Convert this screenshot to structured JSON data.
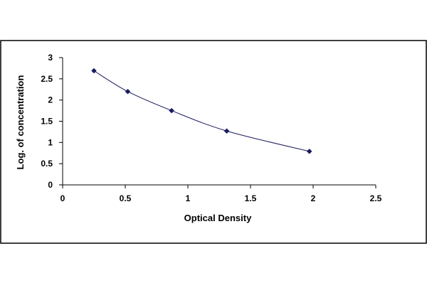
{
  "chart_data": {
    "type": "scatter",
    "title": "",
    "xlabel": "Optical Density",
    "ylabel": "Log. of concentration",
    "xlim": [
      0,
      2.5
    ],
    "ylim": [
      0,
      3
    ],
    "xticks": [
      0,
      0.5,
      1,
      1.5,
      2,
      2.5
    ],
    "xtick_labels": [
      "0",
      "0.5",
      "1",
      "1.5",
      "2",
      "2.5"
    ],
    "yticks": [
      0,
      0.5,
      1,
      1.5,
      2,
      2.5,
      3
    ],
    "ytick_labels": [
      "0",
      "0.5",
      "1",
      "1.5",
      "2",
      "2.5",
      "3"
    ],
    "grid": false,
    "legend": "none",
    "series": [
      {
        "x": [
          0.25,
          0.52,
          0.87,
          1.31,
          1.97
        ],
        "y": [
          2.69,
          2.2,
          1.75,
          1.27,
          0.79
        ],
        "marker": "diamond",
        "trendline": "smooth curve",
        "color": "#1a1a5e"
      }
    ]
  },
  "colors": {
    "background": "#ffffff",
    "border": "#000000",
    "series": "#1a1a5e"
  }
}
